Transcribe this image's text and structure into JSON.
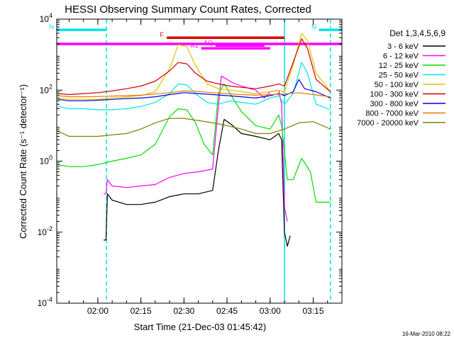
{
  "title": "HESSI Observing Summary Count Rates, Corrected",
  "footer_date": "16-Mar-2010 08:22",
  "chart_data": {
    "type": "line",
    "title": "HESSI Observing Summary Count Rates, Corrected",
    "xlabel": "Start Time (21-Dec-03 01:45:42)",
    "ylabel": "Corrected Count Rate (s⁻¹ detector⁻¹)",
    "y_scale": "log",
    "ylim": [
      0.0001,
      10000
    ],
    "xlim": [
      "01:45:42",
      "03:25:00"
    ],
    "x_ticks": [
      "02:00",
      "02:15",
      "02:30",
      "02:45",
      "03:00",
      "03:15"
    ],
    "y_ticks": [
      "10^-4",
      "10^-2",
      "10^0",
      "10^2",
      "10^4"
    ],
    "grid": false,
    "legend_title": "Det 1,3,4,5,6,9",
    "legend_position": "right",
    "vertical_markers": [
      {
        "time": "02:03:00",
        "style": "dashed",
        "color": "#00e5e5"
      },
      {
        "time": "03:05:00",
        "style": "solid",
        "color": "#00e5e5"
      },
      {
        "time": "03:21:00",
        "style": "dashed",
        "color": "#00e5e5"
      }
    ],
    "flag_bars": [
      {
        "label": "N",
        "start": "01:45:42",
        "end": "02:03:00",
        "level": 5000,
        "color": "#00e5e5"
      },
      {
        "label": "N",
        "start": "03:17:00",
        "end": "03:25:00",
        "level": 5000,
        "color": "#00e5e5"
      },
      {
        "label": "F",
        "start": "02:24:00",
        "end": "03:05:00",
        "level": 3000,
        "color": "#e00000"
      },
      {
        "label": "",
        "start": "01:45:42",
        "end": "03:25:00",
        "level": 2000,
        "color": "#ff00ff"
      },
      {
        "label": "AQ",
        "start": "02:41:00",
        "end": "02:58:00",
        "level": 1800,
        "color": "#ff00ff"
      },
      {
        "label": "A1",
        "start": "02:36:00",
        "end": "03:00:00",
        "level": 1500,
        "color": "#ff00ff"
      }
    ],
    "series": [
      {
        "name": "3 - 6 keV",
        "color": "#000000",
        "points": [
          [
            "02:02:00",
            0.006
          ],
          [
            "02:02:50",
            0.006
          ],
          [
            "02:03:20",
            0.12
          ],
          [
            "02:05:00",
            0.08
          ],
          [
            "02:10:00",
            0.06
          ],
          [
            "02:15:00",
            0.06
          ],
          [
            "02:20:00",
            0.07
          ],
          [
            "02:25:00",
            0.1
          ],
          [
            "02:30:00",
            0.12
          ],
          [
            "02:35:00",
            0.12
          ],
          [
            "02:40:00",
            0.15
          ],
          [
            "02:42:00",
            2
          ],
          [
            "02:44:00",
            15
          ],
          [
            "02:47:00",
            10
          ],
          [
            "02:50:00",
            6
          ],
          [
            "02:55:00",
            5
          ],
          [
            "03:00:00",
            4
          ],
          [
            "03:03:00",
            6
          ],
          [
            "03:04:00",
            4
          ],
          [
            "03:05:00",
            0.01
          ],
          [
            "03:06:00",
            0.004
          ],
          [
            "03:07:00",
            0.008
          ]
        ]
      },
      {
        "name": "6 - 12 keV",
        "color": "#ff00ff",
        "points": [
          [
            "02:02:00",
            0.12
          ],
          [
            "02:02:50",
            0.12
          ],
          [
            "02:03:20",
            0.3
          ],
          [
            "02:05:00",
            0.2
          ],
          [
            "02:10:00",
            0.18
          ],
          [
            "02:15:00",
            0.2
          ],
          [
            "02:20:00",
            0.22
          ],
          [
            "02:25:00",
            0.35
          ],
          [
            "02:30:00",
            0.45
          ],
          [
            "02:35:00",
            0.5
          ],
          [
            "02:40:00",
            0.6
          ],
          [
            "02:41:00",
            5
          ],
          [
            "02:43:00",
            250
          ],
          [
            "02:47:00",
            160
          ],
          [
            "02:50:00",
            130
          ],
          [
            "02:55:00",
            100
          ],
          [
            "02:58:00",
            60
          ],
          [
            "03:00:00",
            90
          ],
          [
            "03:03:00",
            100
          ],
          [
            "03:04:00",
            40
          ],
          [
            "03:05:00",
            0.05
          ],
          [
            "03:06:00",
            0.02
          ]
        ]
      },
      {
        "name": "12 - 25 keV",
        "color": "#00dd00",
        "points": [
          [
            "01:46:00",
            0.8
          ],
          [
            "01:50:00",
            0.7
          ],
          [
            "01:55:00",
            0.7
          ],
          [
            "02:00:00",
            0.8
          ],
          [
            "02:05:00",
            1
          ],
          [
            "02:10:00",
            1.2
          ],
          [
            "02:15:00",
            1.5
          ],
          [
            "02:20:00",
            3
          ],
          [
            "02:25:00",
            18
          ],
          [
            "02:28:00",
            30
          ],
          [
            "02:31:00",
            28
          ],
          [
            "02:34:00",
            12
          ],
          [
            "02:37:00",
            3
          ],
          [
            "02:40:00",
            1.5
          ],
          [
            "02:42:00",
            80
          ],
          [
            "02:44:00",
            150
          ],
          [
            "02:47:00",
            60
          ],
          [
            "02:50:00",
            25
          ],
          [
            "02:55:00",
            10
          ],
          [
            "03:00:00",
            8
          ],
          [
            "03:03:00",
            20
          ],
          [
            "03:04:00",
            10
          ],
          [
            "03:06:00",
            0.3
          ],
          [
            "03:08:00",
            0.3
          ],
          [
            "03:11:00",
            1.2
          ],
          [
            "03:14:00",
            0.5
          ],
          [
            "03:16:00",
            0.07
          ],
          [
            "03:21:00",
            0.07
          ]
        ]
      },
      {
        "name": "25 - 50 keV",
        "color": "#00e5e5",
        "points": [
          [
            "01:46:00",
            35
          ],
          [
            "01:50:00",
            30
          ],
          [
            "01:55:00",
            30
          ],
          [
            "02:00:00",
            28
          ],
          [
            "02:05:00",
            28
          ],
          [
            "02:10:00",
            30
          ],
          [
            "02:15:00",
            35
          ],
          [
            "02:20:00",
            45
          ],
          [
            "02:25:00",
            80
          ],
          [
            "02:28:00",
            150
          ],
          [
            "02:31:00",
            140
          ],
          [
            "02:34:00",
            80
          ],
          [
            "02:38:00",
            45
          ],
          [
            "02:42:00",
            40
          ],
          [
            "02:46:00",
            50
          ],
          [
            "02:50:00",
            45
          ],
          [
            "02:55:00",
            40
          ],
          [
            "03:00:00",
            60
          ],
          [
            "03:03:00",
            70
          ],
          [
            "03:05:00",
            40
          ],
          [
            "03:08:00",
            80
          ],
          [
            "03:11:00",
            600
          ],
          [
            "03:13:00",
            300
          ],
          [
            "03:16:00",
            40
          ],
          [
            "03:21:00",
            28
          ]
        ]
      },
      {
        "name": "50 - 100 keV",
        "color": "#e0c000",
        "points": [
          [
            "01:46:00",
            60
          ],
          [
            "01:50:00",
            55
          ],
          [
            "01:55:00",
            55
          ],
          [
            "02:00:00",
            55
          ],
          [
            "02:05:00",
            60
          ],
          [
            "02:10:00",
            65
          ],
          [
            "02:15:00",
            70
          ],
          [
            "02:20:00",
            90
          ],
          [
            "02:25:00",
            400
          ],
          [
            "02:28:00",
            1900
          ],
          [
            "02:31:00",
            1700
          ],
          [
            "02:34:00",
            500
          ],
          [
            "02:38:00",
            150
          ],
          [
            "02:42:00",
            110
          ],
          [
            "02:46:00",
            100
          ],
          [
            "02:50:00",
            90
          ],
          [
            "02:55:00",
            80
          ],
          [
            "03:00:00",
            90
          ],
          [
            "03:03:00",
            100
          ],
          [
            "03:05:00",
            90
          ],
          [
            "03:08:00",
            500
          ],
          [
            "03:11:00",
            4000
          ],
          [
            "03:13:00",
            2500
          ],
          [
            "03:16:00",
            300
          ],
          [
            "03:21:00",
            90
          ]
        ]
      },
      {
        "name": "100 - 300 keV",
        "color": "#cc0000",
        "points": [
          [
            "01:46:00",
            80
          ],
          [
            "01:50:00",
            75
          ],
          [
            "01:55:00",
            80
          ],
          [
            "02:00:00",
            85
          ],
          [
            "02:05:00",
            95
          ],
          [
            "02:10:00",
            110
          ],
          [
            "02:15:00",
            130
          ],
          [
            "02:20:00",
            180
          ],
          [
            "02:25:00",
            350
          ],
          [
            "02:28:00",
            600
          ],
          [
            "02:31:00",
            550
          ],
          [
            "02:34:00",
            300
          ],
          [
            "02:38:00",
            180
          ],
          [
            "02:42:00",
            150
          ],
          [
            "02:46:00",
            130
          ],
          [
            "02:50:00",
            120
          ],
          [
            "02:55:00",
            110
          ],
          [
            "03:00:00",
            130
          ],
          [
            "03:03:00",
            150
          ],
          [
            "03:05:00",
            130
          ],
          [
            "03:08:00",
            600
          ],
          [
            "03:11:00",
            2800
          ],
          [
            "03:13:00",
            1500
          ],
          [
            "03:16:00",
            200
          ],
          [
            "03:21:00",
            90
          ]
        ]
      },
      {
        "name": "300 - 800 keV",
        "color": "#0000dd",
        "points": [
          [
            "01:46:00",
            55
          ],
          [
            "01:50:00",
            50
          ],
          [
            "01:55:00",
            50
          ],
          [
            "02:00:00",
            52
          ],
          [
            "02:05:00",
            55
          ],
          [
            "02:10:00",
            58
          ],
          [
            "02:15:00",
            60
          ],
          [
            "02:20:00",
            65
          ],
          [
            "02:25:00",
            75
          ],
          [
            "02:30:00",
            85
          ],
          [
            "02:35:00",
            80
          ],
          [
            "02:40:00",
            75
          ],
          [
            "02:45:00",
            70
          ],
          [
            "02:50:00",
            65
          ],
          [
            "02:55:00",
            60
          ],
          [
            "03:00:00",
            70
          ],
          [
            "03:03:00",
            80
          ],
          [
            "03:05:00",
            70
          ],
          [
            "03:08:00",
            90
          ],
          [
            "03:10:00",
            200
          ],
          [
            "03:12:00",
            110
          ],
          [
            "03:16:00",
            90
          ],
          [
            "03:21:00",
            60
          ]
        ]
      },
      {
        "name": "800 - 7000 keV",
        "color": "#ee7700",
        "points": [
          [
            "01:46:00",
            70
          ],
          [
            "01:50:00",
            65
          ],
          [
            "01:55:00",
            65
          ],
          [
            "02:00:00",
            66
          ],
          [
            "02:05:00",
            68
          ],
          [
            "02:10:00",
            70
          ],
          [
            "02:15:00",
            72
          ],
          [
            "02:20:00",
            78
          ],
          [
            "02:25:00",
            85
          ],
          [
            "02:30:00",
            95
          ],
          [
            "02:35:00",
            92
          ],
          [
            "02:40:00",
            85
          ],
          [
            "02:45:00",
            80
          ],
          [
            "02:50:00",
            75
          ],
          [
            "02:55:00",
            72
          ],
          [
            "03:00:00",
            75
          ],
          [
            "03:05:00",
            78
          ],
          [
            "03:10:00",
            85
          ],
          [
            "03:15:00",
            75
          ],
          [
            "03:21:00",
            65
          ]
        ]
      },
      {
        "name": "7000 - 20000 keV",
        "color": "#808000",
        "points": [
          [
            "01:46:00",
            7
          ],
          [
            "01:50:00",
            5
          ],
          [
            "01:55:00",
            5
          ],
          [
            "02:00:00",
            5
          ],
          [
            "02:05:00",
            5.5
          ],
          [
            "02:10:00",
            6
          ],
          [
            "02:15:00",
            8
          ],
          [
            "02:20:00",
            12
          ],
          [
            "02:25:00",
            16
          ],
          [
            "02:30:00",
            16
          ],
          [
            "02:35:00",
            14
          ],
          [
            "02:40:00",
            12
          ],
          [
            "02:45:00",
            10
          ],
          [
            "02:50:00",
            8
          ],
          [
            "02:55:00",
            6
          ],
          [
            "03:00:00",
            6
          ],
          [
            "03:05:00",
            8
          ],
          [
            "03:10:00",
            12
          ],
          [
            "03:15:00",
            13
          ],
          [
            "03:21:00",
            8
          ]
        ]
      }
    ]
  }
}
